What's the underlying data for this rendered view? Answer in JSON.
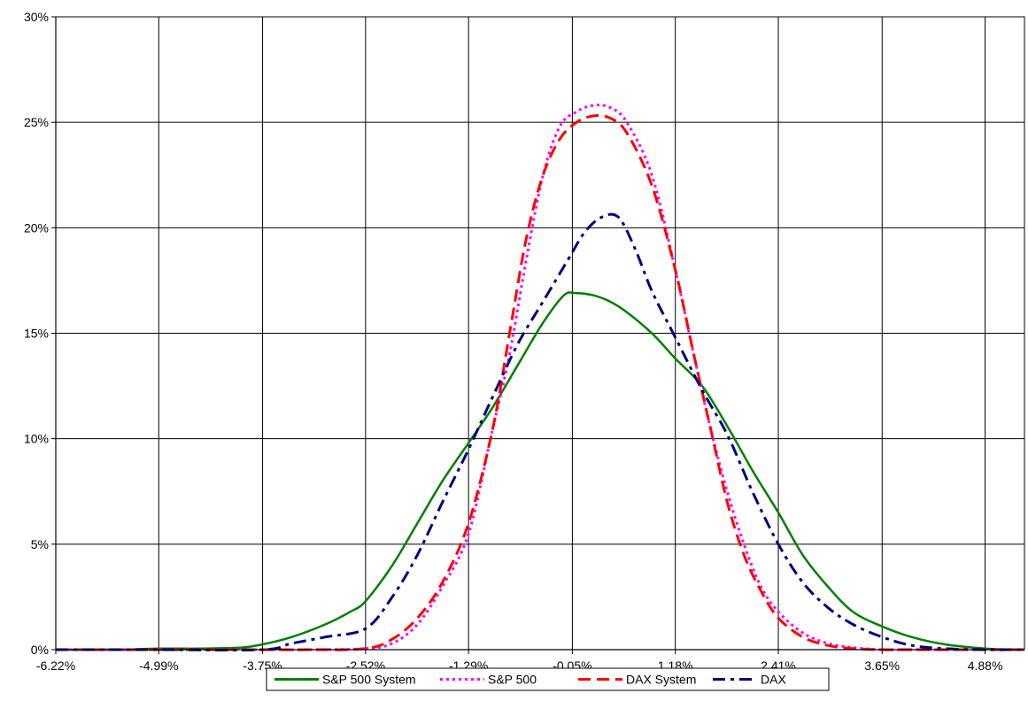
{
  "chart_data": {
    "type": "line",
    "title": "",
    "xlabel": "",
    "ylabel": "",
    "xlim": [
      -6.22,
      5.35
    ],
    "ylim": [
      0,
      30
    ],
    "grid": true,
    "legend_position": "bottom",
    "x_tick_labels": [
      "-6.22%",
      "-4.99%",
      "-3.75%",
      "-2.52%",
      "-1.29%",
      "-0.05%",
      "1.18%",
      "2.41%",
      "3.65%",
      "4.88%"
    ],
    "x_tick_values": [
      -6.22,
      -4.99,
      -3.75,
      -2.52,
      -1.29,
      -0.05,
      1.18,
      2.41,
      3.65,
      4.88
    ],
    "y_tick_labels": [
      "0%",
      "5%",
      "10%",
      "15%",
      "20%",
      "25%",
      "30%"
    ],
    "y_tick_values": [
      0,
      5,
      10,
      15,
      20,
      25,
      30
    ],
    "series": [
      {
        "name": "S&P 500 System",
        "color": "#008000",
        "style": "solid",
        "x": [
          -6.22,
          -5.5,
          -4.99,
          -4.5,
          -4.0,
          -3.75,
          -3.4,
          -3.0,
          -2.7,
          -2.52,
          -2.2,
          -1.9,
          -1.6,
          -1.29,
          -1.0,
          -0.7,
          -0.4,
          -0.15,
          0.0,
          0.2,
          0.4,
          0.6,
          0.9,
          1.18,
          1.5,
          1.8,
          2.1,
          2.41,
          2.7,
          3.0,
          3.3,
          3.65,
          4.0,
          4.4,
          4.88,
          5.2,
          5.35
        ],
        "values": [
          0.0,
          0.0,
          0.05,
          0.05,
          0.1,
          0.25,
          0.6,
          1.2,
          1.8,
          2.3,
          4.0,
          6.0,
          8.0,
          9.8,
          11.5,
          13.5,
          15.5,
          16.8,
          16.9,
          16.8,
          16.5,
          16.0,
          15.0,
          13.8,
          12.5,
          10.6,
          8.5,
          6.5,
          4.5,
          3.0,
          1.8,
          1.1,
          0.6,
          0.25,
          0.05,
          0.0,
          0.0
        ]
      },
      {
        "name": "S&P 500",
        "color": "#ff00ff",
        "style": "dotted",
        "x": [
          -6.22,
          -4.99,
          -3.75,
          -3.2,
          -2.52,
          -2.2,
          -1.9,
          -1.6,
          -1.29,
          -1.0,
          -0.8,
          -0.6,
          -0.4,
          -0.2,
          0.0,
          0.2,
          0.4,
          0.6,
          0.9,
          1.18,
          1.4,
          1.6,
          1.8,
          2.0,
          2.2,
          2.41,
          2.7,
          3.0,
          3.3,
          3.65,
          4.0,
          4.88,
          5.35
        ],
        "values": [
          0.0,
          0.0,
          0.0,
          0.0,
          0.05,
          0.3,
          1.2,
          3.0,
          5.5,
          10.5,
          14.0,
          18.5,
          22.5,
          24.8,
          25.5,
          25.8,
          25.7,
          25.0,
          22.5,
          18.0,
          14.0,
          10.5,
          7.5,
          5.0,
          3.0,
          1.8,
          0.8,
          0.3,
          0.1,
          0.0,
          0.0,
          0.0,
          0.0
        ]
      },
      {
        "name": "DAX System",
        "color": "#ff0000",
        "style": "dashed",
        "x": [
          -6.22,
          -4.99,
          -3.75,
          -3.2,
          -2.52,
          -2.2,
          -1.9,
          -1.6,
          -1.29,
          -1.0,
          -0.8,
          -0.6,
          -0.4,
          -0.2,
          0.0,
          0.2,
          0.4,
          0.6,
          0.9,
          1.18,
          1.4,
          1.6,
          1.8,
          2.0,
          2.2,
          2.41,
          2.7,
          3.0,
          3.3,
          3.65,
          4.0,
          4.88,
          5.35
        ],
        "values": [
          0.0,
          0.0,
          0.0,
          0.0,
          0.05,
          0.5,
          1.5,
          3.2,
          6.0,
          10.5,
          15.0,
          19.5,
          22.5,
          24.2,
          25.0,
          25.3,
          25.2,
          24.5,
          22.0,
          18.0,
          14.0,
          10.5,
          7.0,
          4.5,
          2.8,
          1.5,
          0.6,
          0.2,
          0.05,
          0.0,
          0.0,
          0.0,
          0.0
        ]
      },
      {
        "name": "DAX",
        "color": "#000080",
        "style": "dashdot",
        "x": [
          -6.22,
          -4.99,
          -3.75,
          -3.4,
          -3.0,
          -2.52,
          -2.2,
          -1.9,
          -1.6,
          -1.29,
          -1.0,
          -0.7,
          -0.4,
          -0.1,
          0.1,
          0.3,
          0.5,
          0.7,
          0.9,
          1.18,
          1.5,
          1.8,
          2.1,
          2.41,
          2.7,
          3.0,
          3.3,
          3.65,
          4.0,
          4.4,
          4.88,
          5.35
        ],
        "values": [
          0.0,
          0.0,
          0.0,
          0.3,
          0.6,
          1.0,
          2.5,
          4.5,
          7.0,
          9.5,
          12.0,
          14.5,
          16.5,
          18.5,
          19.8,
          20.5,
          20.5,
          19.0,
          17.0,
          14.8,
          12.3,
          10.2,
          7.5,
          5.0,
          3.2,
          2.0,
          1.2,
          0.6,
          0.2,
          0.05,
          0.0,
          0.0
        ]
      }
    ]
  }
}
